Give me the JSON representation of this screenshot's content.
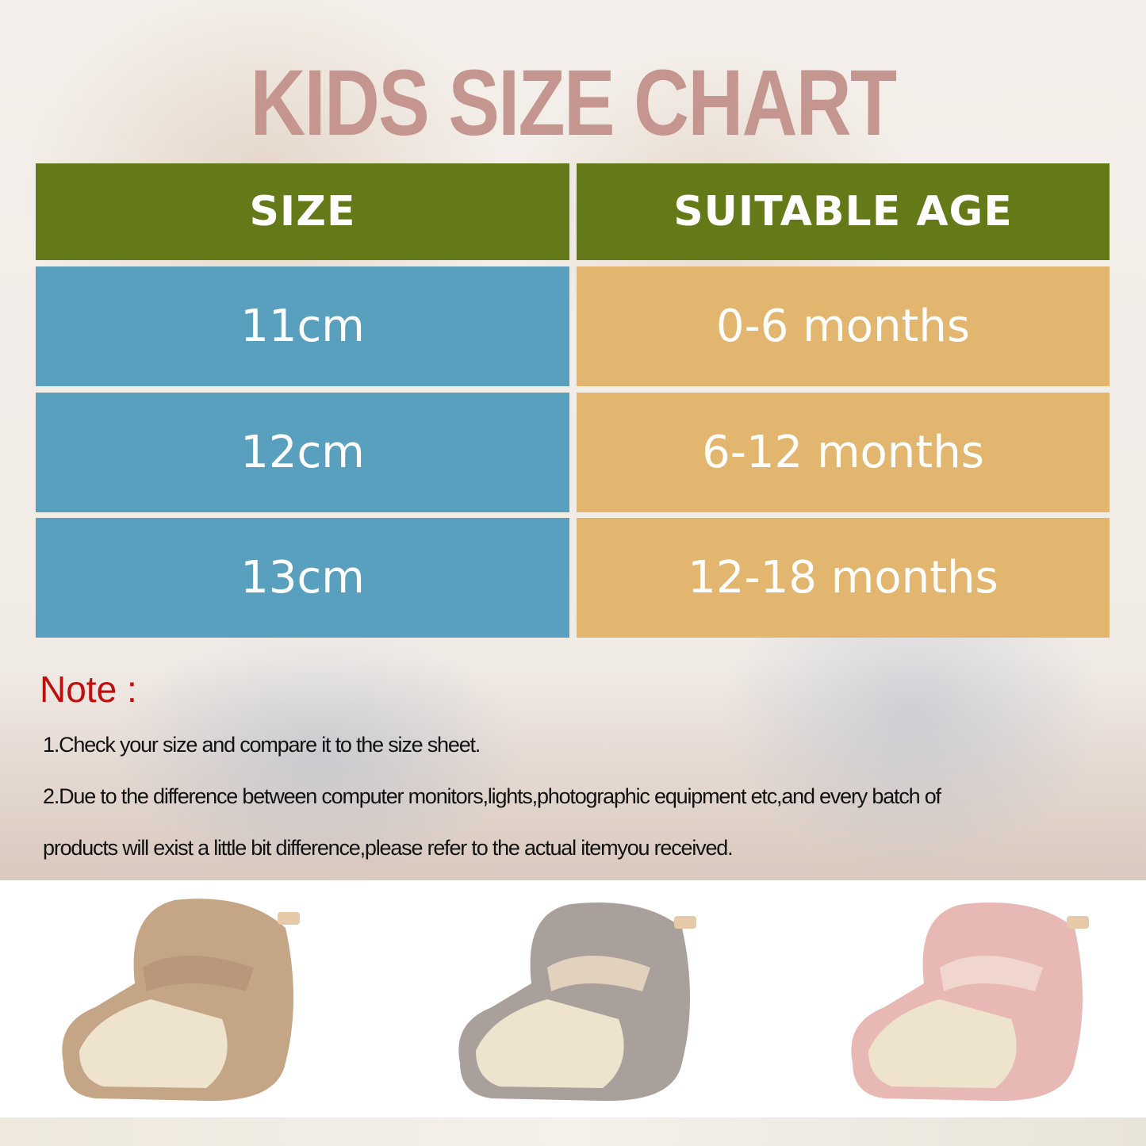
{
  "title": "KIDS SIZE CHART",
  "table": {
    "headers": [
      "SIZE",
      "SUITABLE AGE"
    ],
    "rows": [
      {
        "size": "11cm",
        "age": "0-6 months"
      },
      {
        "size": "12cm",
        "age": "6-12 months"
      },
      {
        "size": "13cm",
        "age": "12-18 months"
      }
    ]
  },
  "note": {
    "label": "Note :",
    "lines": [
      "1.Check your size and compare it to the size sheet.",
      "2.Due to the difference between computer monitors,lights,photographic equipment etc,and every batch of",
      "products will exist a little bit difference,please refer to the actual itemyou received."
    ]
  },
  "products": [
    {
      "name": "brown-bootie",
      "color": "#c4a586"
    },
    {
      "name": "gray-bootie",
      "color": "#a9a09c"
    },
    {
      "name": "pink-bootie",
      "color": "#e8b8b4"
    }
  ],
  "colors": {
    "title": "#c4968f",
    "header": "#647a18",
    "size_cells": "#59a0be",
    "age_cells": "#e2b66e",
    "note_label": "#c00d0d"
  }
}
